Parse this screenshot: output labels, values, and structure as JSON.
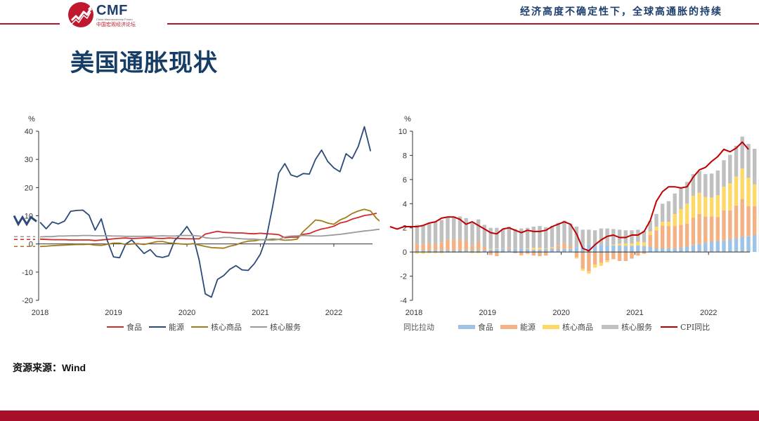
{
  "header": {
    "logo_name": "CMF",
    "logo_subtitle": "China Macroeconomy Forum",
    "logo_cn": "中国宏观经济论坛",
    "title": "经济高度不确定性下，全球高通胀的持续"
  },
  "page_title": "美国通胀现状",
  "source": "资源来源：Wind",
  "colors": {
    "brand_red": "#b5122e",
    "title_blue": "#163d66",
    "food": "#d12a2a",
    "energy": "#2b4a7a",
    "core_goods": "#a07d1c",
    "core_services": "#9a9a9a",
    "bar_food": "#9dc3e6",
    "bar_energy": "#f4b183",
    "bar_core_goods": "#ffd966",
    "bar_core_services": "#c0c0c0",
    "bar_cpi": "#c00000"
  },
  "chart_data": [
    {
      "type": "line",
      "unit_label": "%",
      "xlabel": "",
      "ylabel": "%",
      "ylim": [
        -20,
        40
      ],
      "yticks": [
        40,
        30,
        20,
        10,
        0,
        -10,
        -20
      ],
      "xticks": [
        "2018",
        "2019",
        "2020",
        "2021",
        "2022"
      ],
      "x_start": "2018-01",
      "frequency": "monthly",
      "legend_position": "bottom",
      "series": [
        {
          "name": "食品",
          "color_key": "food",
          "values": [
            1.7,
            1.6,
            1.5,
            1.5,
            1.5,
            1.4,
            1.4,
            1.4,
            1.4,
            1.2,
            1.4,
            1.6,
            1.8,
            2.0,
            2.1,
            1.9,
            2.0,
            2.1,
            2.2,
            2.0,
            1.9,
            2.1,
            2.0,
            1.9,
            1.8,
            1.8,
            1.8,
            3.5,
            4.0,
            4.5,
            4.1,
            4.0,
            3.9,
            3.9,
            3.7,
            3.6,
            3.8,
            3.6,
            3.5,
            3.3,
            2.2,
            2.4,
            2.4,
            3.4,
            3.7,
            4.6,
            5.3,
            5.7,
            6.3,
            7.4,
            7.9,
            8.8,
            9.4,
            10.1,
            10.4,
            10.9
          ]
        },
        {
          "name": "能源",
          "color_key": "energy",
          "values": [
            7.7,
            5.4,
            7.8,
            7.1,
            8.1,
            11.6,
            11.9,
            12.0,
            10.2,
            4.9,
            8.9,
            1.1,
            -4.6,
            -4.9,
            0.0,
            1.4,
            -1.0,
            -3.4,
            -2.0,
            -4.4,
            -4.8,
            -4.2,
            1.2,
            3.4,
            6.2,
            2.8,
            -5.7,
            -17.7,
            -18.9,
            -12.6,
            -11.2,
            -9.0,
            -7.7,
            -9.2,
            -9.4,
            -7.0,
            -3.6,
            2.4,
            13.2,
            25.1,
            28.5,
            24.5,
            23.8,
            25.0,
            24.8,
            30.0,
            33.3,
            29.3,
            27.0,
            25.6,
            32.0,
            30.3,
            34.6,
            41.6,
            32.9
          ]
        },
        {
          "name": "核心商品",
          "color_key": "core_goods",
          "values": [
            -0.9,
            -0.8,
            -0.6,
            -0.5,
            -0.4,
            -0.3,
            -0.2,
            -0.2,
            -0.1,
            -0.4,
            -0.5,
            -0.1,
            0.3,
            0.3,
            -0.2,
            0.0,
            0.1,
            -0.2,
            0.3,
            0.8,
            0.9,
            0.4,
            0.2,
            0.0,
            -0.1,
            0.1,
            -0.4,
            -0.9,
            -1.3,
            -1.4,
            -1.5,
            -0.8,
            -0.3,
            0.5,
            1.0,
            1.1,
            1.5,
            1.5,
            1.7,
            1.6,
            1.3,
            1.4,
            1.7,
            4.4,
            6.4,
            8.5,
            8.2,
            7.4,
            7.0,
            8.5,
            9.4,
            10.8,
            11.7,
            12.3,
            11.7,
            9.0,
            7.2,
            7.0
          ]
        },
        {
          "name": "核心服务",
          "color_key": "core_services",
          "values": [
            2.5,
            2.6,
            2.6,
            2.8,
            2.8,
            2.9,
            2.9,
            3.0,
            3.0,
            2.9,
            2.9,
            2.9,
            2.8,
            2.8,
            2.7,
            2.7,
            2.7,
            2.7,
            2.7,
            2.8,
            2.9,
            2.8,
            2.8,
            3.0,
            3.0,
            3.0,
            2.8,
            2.2,
            2.0,
            2.0,
            2.3,
            2.3,
            2.0,
            1.8,
            1.7,
            1.7,
            1.5,
            1.4,
            1.3,
            1.6,
            2.5,
            2.8,
            2.9,
            3.0,
            2.9,
            2.8,
            2.8,
            3.0,
            3.2,
            3.4,
            3.7,
            4.0,
            4.3,
            4.6,
            4.8,
            5.1,
            5.3,
            5.5,
            5.5
          ]
        }
      ]
    },
    {
      "type": "bar",
      "stacked": true,
      "unit_label": "%",
      "xlabel": "",
      "ylabel": "%",
      "ylim": [
        -4,
        10
      ],
      "yticks": [
        10,
        8,
        6,
        4,
        2,
        0,
        -2,
        -4
      ],
      "xticks": [
        "2018",
        "2019",
        "2020",
        "2021",
        "2022"
      ],
      "x_start": "2018-01",
      "frequency": "monthly",
      "legend_title": "同比拉动",
      "legend_position": "bottom",
      "series": [
        {
          "name": "食品",
          "color_key": "bar_food",
          "values": [
            0.15,
            0.15,
            0.15,
            0.15,
            0.15,
            0.15,
            0.15,
            0.15,
            0.15,
            0.15,
            0.15,
            0.15,
            0.2,
            0.25,
            0.25,
            0.25,
            0.25,
            0.25,
            0.25,
            0.2,
            0.2,
            0.25,
            0.25,
            0.25,
            0.25,
            0.25,
            0.4,
            0.5,
            0.6,
            0.6,
            0.6,
            0.55,
            0.55,
            0.55,
            0.5,
            0.5,
            0.55,
            0.5,
            0.45,
            0.3,
            0.3,
            0.3,
            0.3,
            0.35,
            0.45,
            0.55,
            0.65,
            0.75,
            0.85,
            0.9,
            0.95,
            1.05,
            1.15,
            1.25,
            1.3,
            1.4,
            1.45,
            1.5
          ]
        },
        {
          "name": "能源",
          "color_key": "bar_energy",
          "values": [
            0.5,
            0.5,
            0.55,
            0.55,
            0.65,
            0.85,
            0.9,
            0.9,
            0.75,
            0.4,
            0.7,
            0.3,
            -0.25,
            -0.35,
            0.0,
            0.15,
            -0.1,
            -0.25,
            -0.15,
            -0.3,
            -0.35,
            -0.3,
            0.1,
            0.3,
            0.5,
            0.25,
            -0.45,
            -1.4,
            -1.6,
            -1.05,
            -0.9,
            -0.7,
            -0.6,
            -0.75,
            -0.75,
            -0.55,
            -0.3,
            -0.15,
            0.95,
            1.5,
            1.9,
            1.85,
            1.85,
            1.9,
            1.9,
            2.3,
            2.5,
            2.2,
            2.1,
            2.0,
            2.5,
            2.4,
            2.7,
            3.15,
            2.5,
            2.4
          ]
        },
        {
          "name": "核心商品",
          "color_key": "bar_core_goods",
          "values": [
            -0.15,
            -0.15,
            -0.1,
            -0.1,
            -0.1,
            -0.05,
            -0.05,
            -0.05,
            0.0,
            -0.1,
            -0.1,
            0.0,
            0.05,
            0.05,
            -0.05,
            0.0,
            0.0,
            -0.05,
            0.05,
            0.15,
            0.15,
            0.05,
            0.05,
            0.0,
            0.0,
            0.0,
            -0.1,
            -0.15,
            -0.2,
            -0.25,
            -0.25,
            -0.15,
            0.05,
            0.15,
            0.2,
            0.2,
            0.3,
            0.3,
            0.3,
            0.3,
            0.3,
            0.35,
            1.0,
            1.3,
            1.65,
            1.8,
            1.75,
            1.6,
            1.55,
            1.8,
            1.95,
            2.25,
            2.4,
            2.5,
            2.35,
            1.8,
            1.5,
            1.4
          ]
        },
        {
          "name": "核心服务",
          "color_key": "bar_core_services",
          "values": [
            1.6,
            1.6,
            1.7,
            1.8,
            1.85,
            1.85,
            1.85,
            1.9,
            1.9,
            1.85,
            1.85,
            1.8,
            1.75,
            1.7,
            1.65,
            1.7,
            1.65,
            1.7,
            1.7,
            1.75,
            1.8,
            1.75,
            1.75,
            1.85,
            1.85,
            1.85,
            1.7,
            1.35,
            1.25,
            1.2,
            1.35,
            1.4,
            1.3,
            1.15,
            1.1,
            1.1,
            1.0,
            0.95,
            0.9,
            1.05,
            1.5,
            1.7,
            1.7,
            1.75,
            1.8,
            1.8,
            1.8,
            1.9,
            2.0,
            2.05,
            2.2,
            2.35,
            2.55,
            2.65,
            2.8,
            2.95,
            3.1,
            3.2
          ]
        },
        {
          "name": "CPI同比",
          "color_key": "bar_cpi",
          "kind": "line",
          "values": [
            2.1,
            2.2,
            2.4,
            2.5,
            2.8,
            2.9,
            2.9,
            2.7,
            2.3,
            2.5,
            2.2,
            1.9,
            1.6,
            1.5,
            1.9,
            2.0,
            1.8,
            1.6,
            1.8,
            1.7,
            1.7,
            1.8,
            2.1,
            2.3,
            2.5,
            2.3,
            1.5,
            0.3,
            0.1,
            0.6,
            1.0,
            1.3,
            1.4,
            1.2,
            1.2,
            1.4,
            1.4,
            1.7,
            2.6,
            4.2,
            5.0,
            5.4,
            5.4,
            5.3,
            5.4,
            6.2,
            6.8,
            7.0,
            7.5,
            7.9,
            8.5,
            8.3,
            8.6,
            9.1,
            8.5
          ]
        }
      ],
      "cpi_prefix_values": [
        2.1,
        1.9,
        2.1
      ]
    }
  ]
}
